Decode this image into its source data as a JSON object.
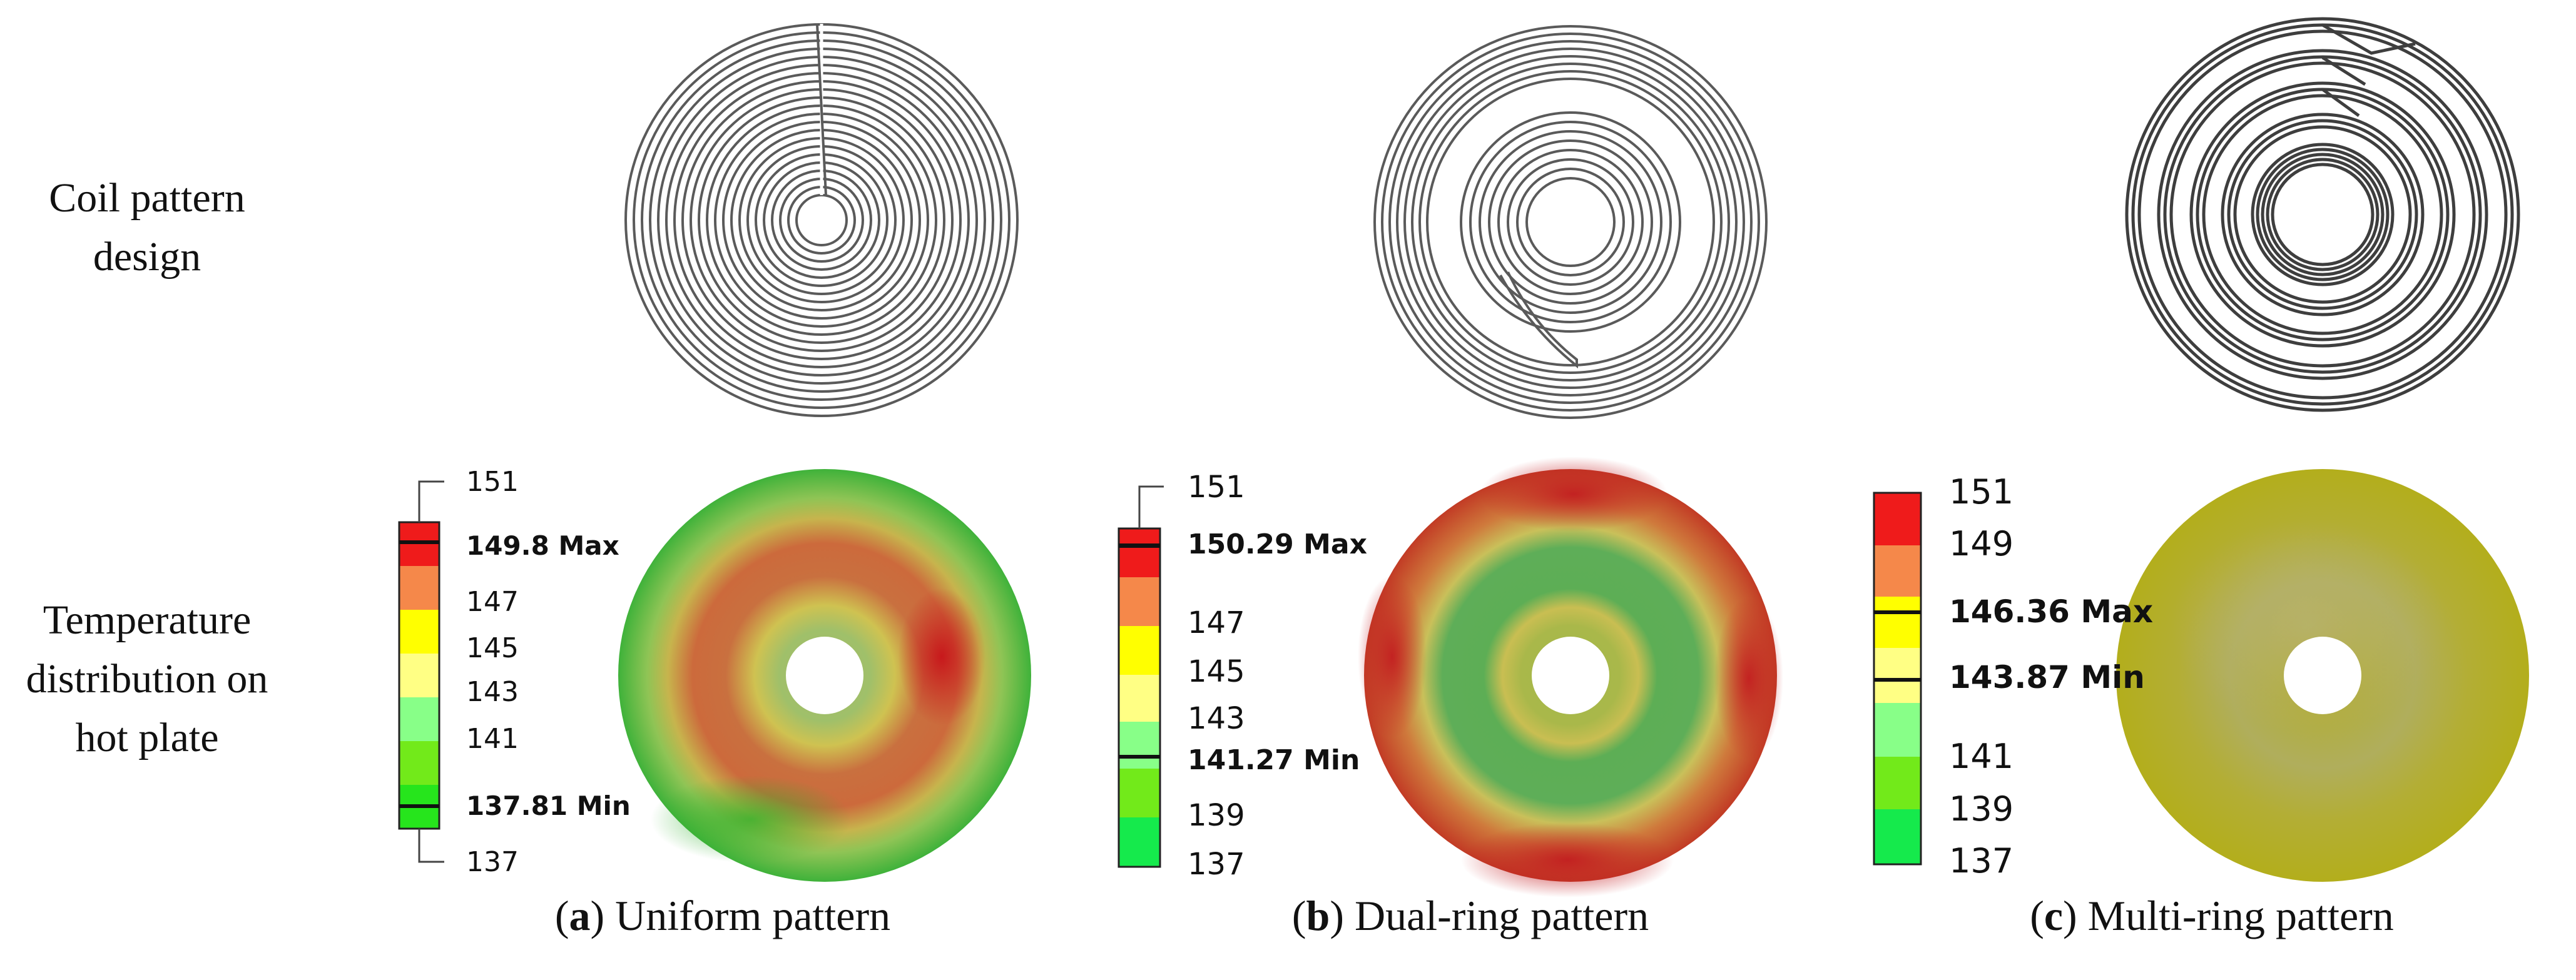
{
  "row_labels": {
    "coil": [
      "Coil pattern",
      "design"
    ],
    "temperature": [
      "Temperature",
      "distribution on",
      "hot plate"
    ]
  },
  "colors": {
    "red": "#ef1b1b",
    "orange": "#f5884a",
    "yellow": "#ffff00",
    "light_yellow": "#ffff84",
    "light_green": "#88ff88",
    "lime": "#72ea1a",
    "green": "#26e51c",
    "bright_green": "#15ea4c",
    "olive": "#b5b21c"
  },
  "panels": [
    {
      "id": "a",
      "caption_letter": "a",
      "caption_text": ") Uniform pattern",
      "coil_icon": "uniform-spiral-coil",
      "legend": {
        "top_label": "151",
        "bottom_label": "137",
        "max_value": "149.8",
        "max_label": "Max",
        "min_value": "137.81",
        "min_label": "Min",
        "labels": [
          "147",
          "145",
          "143",
          "141"
        ]
      }
    },
    {
      "id": "b",
      "caption_letter": "b",
      "caption_text": ") Dual-ring pattern",
      "coil_icon": "dual-ring-coil",
      "legend": {
        "top_label": "151",
        "max_value": "150.29",
        "max_label": "Max",
        "min_value": "141.27",
        "min_label": "Min",
        "labels": [
          "147",
          "145",
          "143",
          "139",
          "137"
        ]
      }
    },
    {
      "id": "c",
      "caption_letter": "c",
      "caption_text": ") Multi-ring pattern",
      "coil_icon": "multi-ring-coil",
      "legend": {
        "max_value": "146.36",
        "max_label": "Max",
        "min_value": "143.87",
        "min_label": "Min",
        "labels": [
          "151",
          "149",
          "141",
          "139",
          "137"
        ]
      }
    }
  ]
}
